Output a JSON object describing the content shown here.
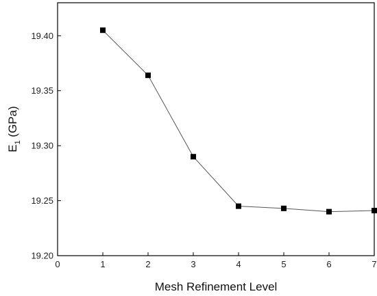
{
  "chart_data": {
    "type": "line",
    "xlabel": "Mesh Refinement Level",
    "ylabel": "E",
    "ylabel_subscript": "1",
    "ylabel_unit": " (GPa)",
    "xlim": [
      0,
      7
    ],
    "ylim": [
      19.2,
      19.43
    ],
    "xticks": [
      "0",
      "1",
      "2",
      "3",
      "4",
      "5",
      "6",
      "7"
    ],
    "yticks": [
      "19.20",
      "19.25",
      "19.30",
      "19.35",
      "19.40"
    ],
    "xtick_values": [
      0,
      1,
      2,
      3,
      4,
      5,
      6,
      7
    ],
    "ytick_values": [
      19.2,
      19.25,
      19.3,
      19.35,
      19.4
    ],
    "series": [
      {
        "x": [
          1,
          2,
          3,
          4,
          5,
          6,
          7
        ],
        "y": [
          19.405,
          19.364,
          19.29,
          19.245,
          19.243,
          19.24,
          19.241
        ],
        "marker": "square",
        "color": "#000000",
        "line_color": "#555555"
      }
    ],
    "grid": false,
    "legend": "none"
  }
}
